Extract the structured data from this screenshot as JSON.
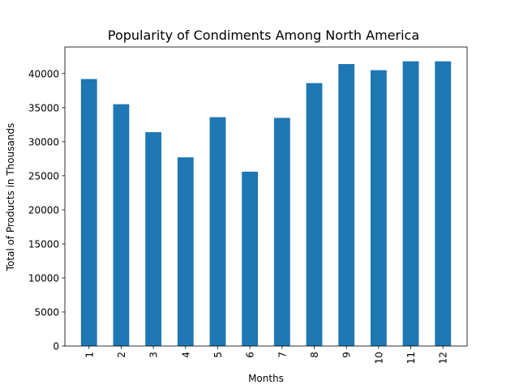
{
  "chart_data": {
    "type": "bar",
    "title": "Popularity of Condiments Among  North America",
    "xlabel": "Months",
    "ylabel": "Total of Products in Thousands",
    "categories": [
      "1",
      "2",
      "3",
      "4",
      "5",
      "6",
      "7",
      "8",
      "9",
      "10",
      "11",
      "12"
    ],
    "values": [
      39200,
      35500,
      31400,
      27700,
      33600,
      25600,
      33500,
      38600,
      41400,
      40500,
      41800,
      41800
    ],
    "ylim": [
      0,
      43900
    ],
    "yticks": [
      0,
      5000,
      10000,
      15000,
      20000,
      25000,
      30000,
      35000,
      40000
    ],
    "bar_color": "#1f77b4",
    "grid": false,
    "legend": "none"
  }
}
